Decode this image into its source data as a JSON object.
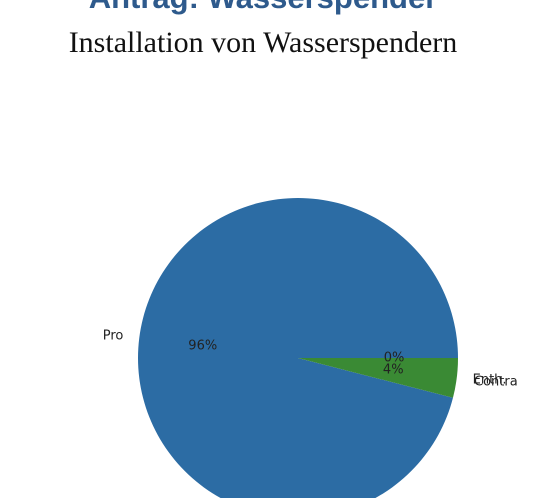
{
  "chart_data": {
    "type": "pie",
    "title": "Antrag: Wasserspender",
    "subtitle": "Installation von Wasserspendern",
    "categories": [
      "Pro",
      "Enth.",
      "Contra"
    ],
    "values": [
      96,
      4,
      0
    ],
    "value_labels": [
      "96%",
      "4%",
      "0%"
    ],
    "colors": [
      "#2c6ca4",
      "#3a8a34",
      "#c0392b"
    ]
  }
}
